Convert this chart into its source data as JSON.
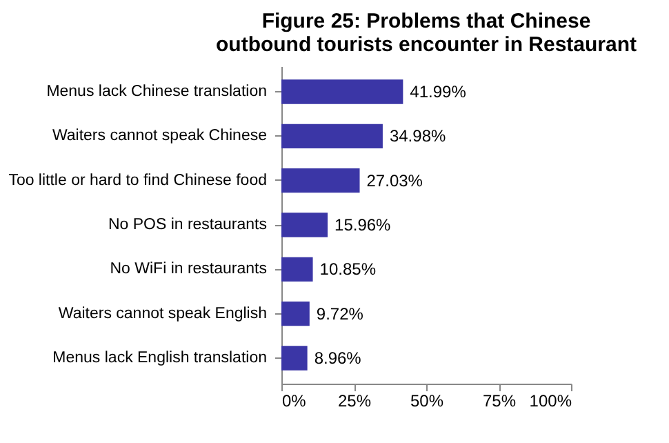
{
  "chart_data": {
    "type": "bar",
    "orientation": "horizontal",
    "title": "Figure 25: Problems that Chinese outbound tourists encounter in Restaurant",
    "categories": [
      "Menus lack Chinese translation",
      "Waiters cannot speak Chinese",
      "Too little or hard to find Chinese food",
      "No POS in restaurants",
      "No WiFi in restaurants",
      "Waiters cannot speak English",
      "Menus lack English translation"
    ],
    "values": [
      41.99,
      34.98,
      27.03,
      15.96,
      10.85,
      9.72,
      8.96
    ],
    "value_labels": [
      "41.99%",
      "34.98%",
      "27.03%",
      "15.96%",
      "10.85%",
      "9.72%",
      "8.96%"
    ],
    "color": "#3b36a6",
    "xlim": [
      0,
      100
    ],
    "xticks": [
      {
        "value": 0,
        "label": "0%"
      },
      {
        "value": 25,
        "label": "25%"
      },
      {
        "value": 50,
        "label": "50%"
      },
      {
        "value": 75,
        "label": "75%"
      },
      {
        "value": 100,
        "label": "100%"
      }
    ],
    "grid": false
  }
}
